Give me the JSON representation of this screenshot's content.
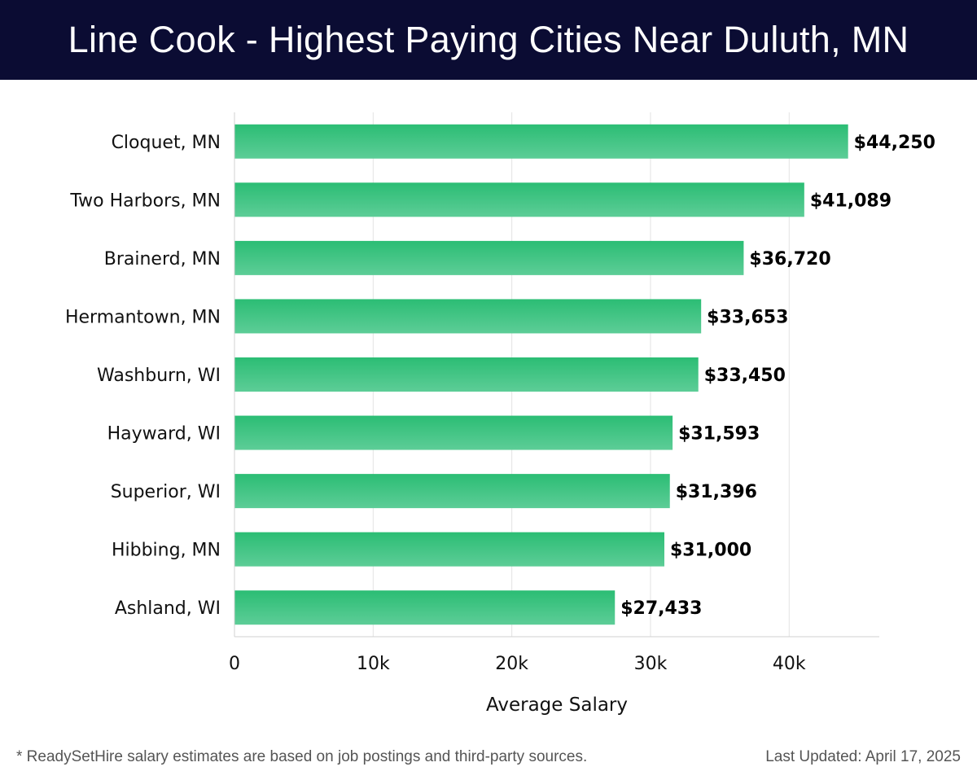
{
  "header": {
    "title": "Line Cook - Highest Paying Cities Near Duluth, MN"
  },
  "footer": {
    "note": "* ReadySetHire salary estimates are based on job postings and third-party sources.",
    "updated": "Last Updated: April 17, 2025"
  },
  "colors": {
    "header_bg": "#0b0c33",
    "bar_top": "#2bbd74",
    "bar_bottom": "#5dcd97"
  },
  "chart_data": {
    "type": "bar",
    "orientation": "horizontal",
    "categories": [
      "Cloquet, MN",
      "Two Harbors, MN",
      "Brainerd, MN",
      "Hermantown, MN",
      "Washburn, WI",
      "Hayward, WI",
      "Superior, WI",
      "Hibbing, MN",
      "Ashland, WI"
    ],
    "values": [
      44250,
      41089,
      36720,
      33653,
      33450,
      31593,
      31396,
      31000,
      27433
    ],
    "value_labels": [
      "$44,250",
      "$41,089",
      "$36,720",
      "$33,653",
      "$33,450",
      "$31,593",
      "$31,396",
      "$31,000",
      "$27,433"
    ],
    "xlabel": "Average Salary",
    "ylabel": "",
    "xlim": [
      0,
      46500
    ],
    "xticks": [
      0,
      10000,
      20000,
      30000,
      40000
    ],
    "xtick_labels": [
      "0",
      "10k",
      "20k",
      "30k",
      "40k"
    ],
    "grid": "vertical",
    "legend": "none"
  }
}
